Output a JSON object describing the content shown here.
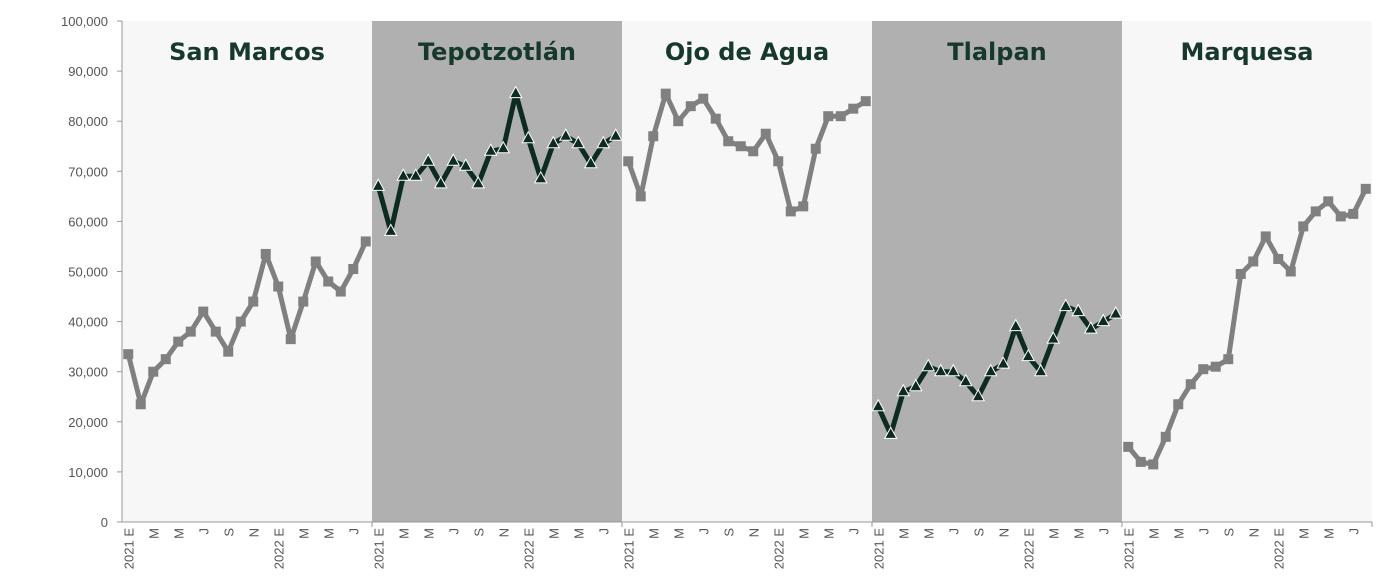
{
  "chart_data": {
    "type": "line",
    "categories": [
      "2021 E",
      null,
      "M",
      null,
      "M",
      null,
      "J",
      null,
      "S",
      null,
      "N",
      null,
      "2022 E",
      null,
      "M",
      null,
      "M",
      null,
      "J",
      null
    ],
    "ylim": [
      0,
      100000
    ],
    "yticks": [
      0,
      {
        "value": 10000,
        "label": "10,000"
      },
      {
        "value": 20000,
        "label": "20,000"
      },
      {
        "value": 30000,
        "label": "30,000"
      },
      {
        "value": 40000,
        "label": "40,000"
      },
      {
        "value": 50000,
        "label": "50,000"
      },
      {
        "value": 60000,
        "label": "60,000"
      },
      {
        "value": 70000,
        "label": "70,000"
      },
      {
        "value": 80000,
        "label": "80,000"
      },
      {
        "value": 90000,
        "label": "90,000"
      },
      {
        "value": 100000,
        "label": "100,000"
      }
    ],
    "series": [
      {
        "name": "San Marcos",
        "color": "#808080",
        "marker": "square",
        "background": "#f7f7f7",
        "values": [
          33500,
          23500,
          30000,
          32500,
          36000,
          38000,
          42000,
          38000,
          34000,
          40000,
          44000,
          53500,
          47000,
          36500,
          44000,
          52000,
          48000,
          46000,
          50500,
          56000
        ]
      },
      {
        "name": "Tepotzotlán",
        "color": "#0d2b22",
        "marker": "triangle",
        "background": "#b0b0b0",
        "values": [
          67000,
          58000,
          69000,
          69000,
          72000,
          67500,
          72000,
          71000,
          67500,
          74000,
          74500,
          85500,
          76500,
          68500,
          75500,
          77000,
          75500,
          71500,
          75500,
          77000
        ]
      },
      {
        "name": "Ojo de Agua",
        "color": "#808080",
        "marker": "square",
        "background": "#f7f7f7",
        "values": [
          72000,
          65000,
          77000,
          85500,
          80000,
          83000,
          84500,
          80500,
          76000,
          75000,
          74000,
          77500,
          72000,
          62000,
          63000,
          74500,
          81000,
          81000,
          82500,
          84000
        ]
      },
      {
        "name": "Tlalpan",
        "color": "#0d2b22",
        "marker": "triangle",
        "background": "#b0b0b0",
        "values": [
          23000,
          17500,
          26000,
          27000,
          31000,
          30000,
          30000,
          28000,
          25000,
          30000,
          31500,
          39000,
          33000,
          30000,
          36500,
          43000,
          42000,
          38500,
          40000,
          41500
        ]
      },
      {
        "name": "Marquesa",
        "color": "#808080",
        "marker": "square",
        "background": "#f7f7f7",
        "values": [
          15000,
          12000,
          11500,
          17000,
          23500,
          27500,
          30500,
          31000,
          32500,
          49500,
          52000,
          57000,
          52500,
          50000,
          59000,
          62000,
          64000,
          61000,
          61500,
          66500
        ]
      }
    ]
  }
}
